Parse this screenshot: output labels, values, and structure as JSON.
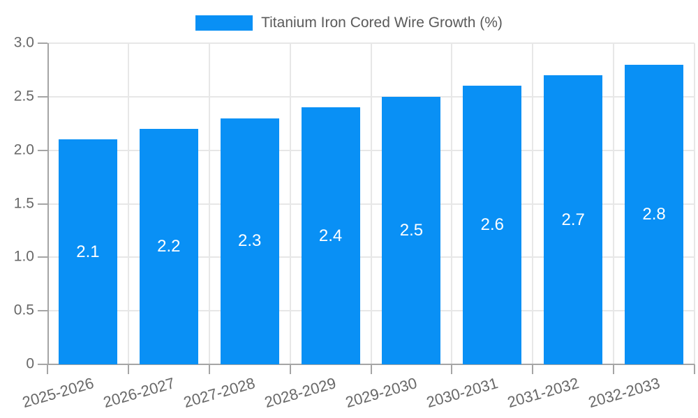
{
  "legend": {
    "label": "Titanium Iron Cored Wire Growth (%)"
  },
  "colors": {
    "bar": "#0990f5",
    "grid": "#e7e7e7",
    "axis": "#a5a5a5",
    "tick_label": "#686868",
    "value_label": "#ffffff",
    "legend_text": "#5a5a5a"
  },
  "chart_data": {
    "type": "bar",
    "title": "",
    "series_name": "Titanium Iron Cored Wire Growth (%)",
    "categories": [
      "2025-2026",
      "2026-2027",
      "2027-2028",
      "2028-2029",
      "2029-2030",
      "2030-2031",
      "2031-2032",
      "2032-2033"
    ],
    "values": [
      2.1,
      2.2,
      2.3,
      2.4,
      2.5,
      2.6,
      2.7,
      2.8
    ],
    "bar_labels": [
      "2.1",
      "2.2",
      "2.3",
      "2.4",
      "2.5",
      "2.6",
      "2.7",
      "2.8"
    ],
    "xlabel": "",
    "ylabel": "",
    "ylim": [
      0,
      3.0
    ],
    "yticks": [
      0,
      0.5,
      1.0,
      1.5,
      2.0,
      2.5,
      3.0
    ],
    "ytick_labels": [
      "0",
      "0.5",
      "1.0",
      "1.5",
      "2.0",
      "2.5",
      "3.0"
    ],
    "grid": true,
    "legend_position": "top"
  }
}
